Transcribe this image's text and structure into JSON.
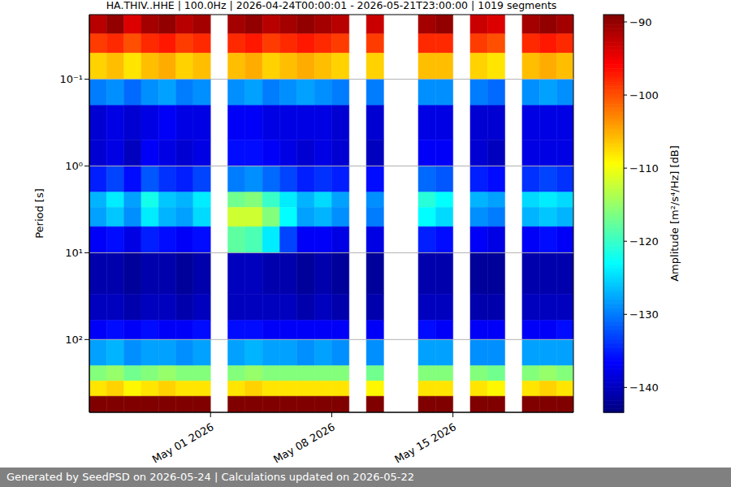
{
  "chart_data": {
    "type": "heatmap",
    "title": "HA.THIV..HHE | 100.0Hz | 2026-04-24T00:00:01 - 2026-05-21T23:00:00 | 1019 segments",
    "ylabel": "Period [s]",
    "log": "y",
    "grid": "y",
    "xlim": [
      "2026-04-24T00:00:01",
      "2026-05-21T23:00:00"
    ],
    "xticks": [
      {
        "value": "2026-05-01",
        "label": "May 01 2026"
      },
      {
        "value": "2026-05-08",
        "label": "May 08 2026"
      },
      {
        "value": "2026-05-15",
        "label": "May 15 2026"
      }
    ],
    "ylim": [
      0.018,
      690
    ],
    "yticks": [
      {
        "value": 0.1,
        "label": "10⁻¹"
      },
      {
        "value": 1,
        "label": "10⁰"
      },
      {
        "value": 10,
        "label": "10¹"
      },
      {
        "value": 100,
        "label": "10²"
      }
    ],
    "period_edges": [
      0.018,
      0.03,
      0.05,
      0.1,
      0.2,
      0.5,
      1,
      2,
      3,
      5,
      10,
      30,
      60,
      100,
      200,
      300,
      450,
      690
    ],
    "x": [
      "2026-04-24",
      "2026-04-25",
      "2026-04-26",
      "2026-04-27",
      "2026-04-28",
      "2026-04-29",
      "2026-04-30",
      "2026-05-01",
      "2026-05-02",
      "2026-05-03",
      "2026-05-04",
      "2026-05-05",
      "2026-05-06",
      "2026-05-07",
      "2026-05-08",
      "2026-05-09",
      "2026-05-10",
      "2026-05-11",
      "2026-05-12",
      "2026-05-13",
      "2026-05-14",
      "2026-05-15",
      "2026-05-16",
      "2026-05-17",
      "2026-05-18",
      "2026-05-19",
      "2026-05-20",
      "2026-05-21"
    ],
    "cells": [
      [
        -92,
        -99,
        -107,
        -130,
        -139,
        -139,
        -135,
        -127,
        -128,
        -137,
        -141,
        -140,
        -137,
        -128,
        -116,
        -108,
        -89
      ],
      [
        -90,
        -98,
        -106,
        -129,
        -138,
        -138,
        -133,
        -124,
        -126,
        -136,
        -141,
        -140,
        -136,
        -127,
        -115,
        -107,
        -89
      ],
      [
        -94,
        -100,
        -108,
        -131,
        -139,
        -140,
        -136,
        -128,
        -129,
        -138,
        -142,
        -141,
        -137,
        -129,
        -117,
        -109,
        -89
      ],
      [
        -91,
        -98,
        -106,
        -129,
        -138,
        -137,
        -132,
        -122,
        -124,
        -135,
        -141,
        -140,
        -136,
        -128,
        -116,
        -108,
        -89
      ],
      [
        -90,
        -97,
        -105,
        -128,
        -137,
        -138,
        -134,
        -126,
        -127,
        -136,
        -141,
        -140,
        -137,
        -128,
        -115,
        -107,
        -89
      ],
      [
        -92,
        -99,
        -107,
        -130,
        -138,
        -139,
        -135,
        -127,
        -128,
        -137,
        -142,
        -141,
        -137,
        -129,
        -116,
        -108,
        -89
      ],
      [
        -91,
        -98,
        -106,
        -129,
        -138,
        -138,
        -133,
        -124,
        -125,
        -136,
        -141,
        -140,
        -136,
        -128,
        -116,
        -108,
        -89
      ],
      null,
      [
        -91,
        -98,
        -106,
        -129,
        -137,
        -136,
        -130,
        -117,
        -112,
        -118,
        -140,
        -140,
        -136,
        -128,
        -116,
        -108,
        -89
      ],
      [
        -90,
        -97,
        -105,
        -128,
        -137,
        -136,
        -129,
        -116,
        -112,
        -119,
        -140,
        -140,
        -136,
        -127,
        -115,
        -107,
        -89
      ],
      [
        -92,
        -99,
        -107,
        -130,
        -138,
        -137,
        -131,
        -120,
        -116,
        -124,
        -141,
        -140,
        -137,
        -128,
        -116,
        -108,
        -89
      ],
      [
        -91,
        -98,
        -106,
        -129,
        -138,
        -138,
        -133,
        -124,
        -123,
        -133,
        -141,
        -140,
        -137,
        -128,
        -116,
        -108,
        -89
      ],
      [
        -90,
        -97,
        -105,
        -128,
        -138,
        -139,
        -135,
        -127,
        -128,
        -137,
        -142,
        -141,
        -137,
        -129,
        -116,
        -108,
        -89
      ],
      [
        -91,
        -98,
        -106,
        -129,
        -138,
        -138,
        -134,
        -125,
        -127,
        -137,
        -141,
        -140,
        -137,
        -128,
        -116,
        -108,
        -89
      ],
      [
        -92,
        -99,
        -107,
        -130,
        -139,
        -139,
        -135,
        -128,
        -129,
        -138,
        -142,
        -141,
        -137,
        -129,
        -116,
        -108,
        -89
      ],
      null,
      [
        -93,
        -99,
        -107,
        -130,
        -139,
        -140,
        -136,
        -129,
        -130,
        -138,
        -142,
        -141,
        -137,
        -129,
        -117,
        -109,
        -89
      ],
      null,
      null,
      [
        -91,
        -98,
        -106,
        -129,
        -138,
        -137,
        -131,
        -121,
        -123,
        -135,
        -141,
        -140,
        -136,
        -128,
        -116,
        -108,
        -89
      ],
      [
        -90,
        -98,
        -106,
        -129,
        -138,
        -137,
        -132,
        -123,
        -125,
        -136,
        -141,
        -140,
        -137,
        -128,
        -116,
        -108,
        -89
      ],
      null,
      [
        -93,
        -99,
        -107,
        -130,
        -139,
        -139,
        -135,
        -127,
        -129,
        -137,
        -142,
        -141,
        -137,
        -129,
        -116,
        -108,
        -89
      ],
      [
        -94,
        -100,
        -108,
        -131,
        -139,
        -140,
        -136,
        -128,
        -130,
        -138,
        -142,
        -141,
        -137,
        -129,
        -117,
        -109,
        -89
      ],
      null,
      [
        -91,
        -98,
        -106,
        -129,
        -138,
        -138,
        -134,
        -125,
        -127,
        -137,
        -141,
        -140,
        -137,
        -128,
        -116,
        -108,
        -89
      ],
      [
        -90,
        -97,
        -105,
        -128,
        -138,
        -138,
        -133,
        -124,
        -126,
        -136,
        -141,
        -140,
        -137,
        -128,
        -115,
        -107,
        -89
      ],
      [
        -91,
        -98,
        -106,
        -129,
        -138,
        -138,
        -134,
        -125,
        -127,
        -137,
        -141,
        -140,
        -136,
        -128,
        -116,
        -108,
        -89
      ]
    ],
    "colorbar": {
      "label": "Amplitude [m²/s⁴/Hz] [dB]",
      "range": [
        -143.4,
        -89
      ],
      "ticks": [
        {
          "value": -90,
          "label": "−90"
        },
        {
          "value": -100,
          "label": "−100"
        },
        {
          "value": -110,
          "label": "−110"
        },
        {
          "value": -120,
          "label": "−120"
        },
        {
          "value": -130,
          "label": "−130"
        },
        {
          "value": -140,
          "label": "−140"
        }
      ]
    },
    "footer": "Generated by SeedPSD on 2026-05-24 | Calculations updated on 2026-05-22"
  }
}
